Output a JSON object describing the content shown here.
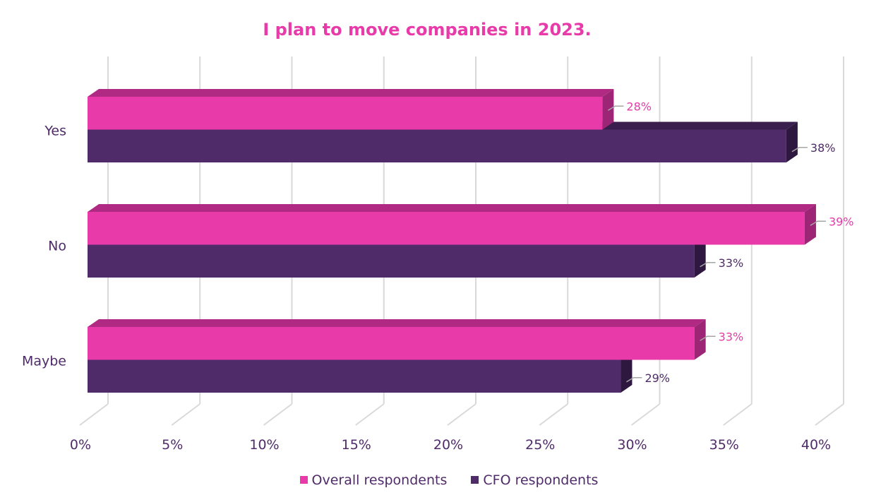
{
  "chart_data": {
    "type": "bar",
    "orientation": "horizontal",
    "style": "3d",
    "title": "I plan to move companies in 2023.",
    "categories": [
      "Yes",
      "No",
      "Maybe"
    ],
    "series": [
      {
        "name": "Overall respondents",
        "values": [
          28,
          39,
          33
        ],
        "labels": [
          "28%",
          "39%",
          "33%"
        ],
        "color": "#e83aa9",
        "top_color": "#b02a84",
        "side_color": "#9c2675"
      },
      {
        "name": "CFO respondents",
        "values": [
          38,
          33,
          29
        ],
        "labels": [
          "38%",
          "33%",
          "29%"
        ],
        "color": "#4f2b69",
        "top_color": "#3a1f4e",
        "side_color": "#2e1840"
      }
    ],
    "xlim": [
      0,
      40
    ],
    "xticks": [
      0,
      5,
      10,
      15,
      20,
      25,
      30,
      35,
      40
    ],
    "xtick_labels": [
      "0%",
      "5%",
      "10%",
      "15%",
      "20%",
      "25%",
      "30%",
      "35%",
      "40%"
    ],
    "grid": true,
    "legend": "bottom",
    "xlabel": "",
    "ylabel": ""
  }
}
